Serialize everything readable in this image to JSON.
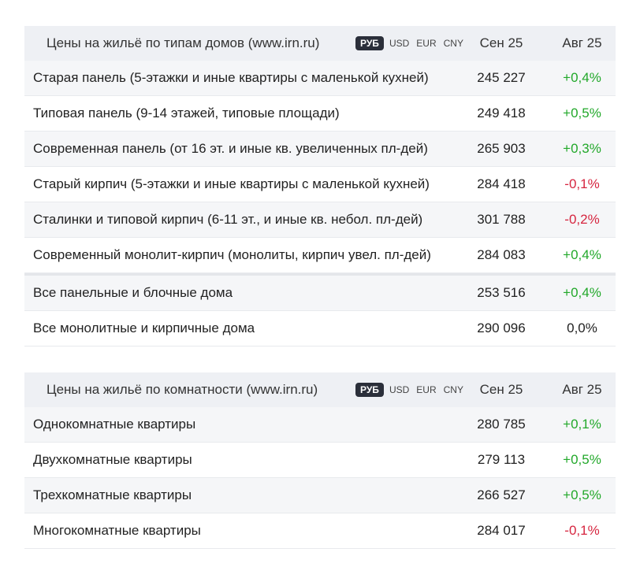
{
  "colors": {
    "positive": "#22a82a",
    "negative": "#d6253f",
    "neutral": "#222222",
    "header_bg": "#eef0f4",
    "active_currency_bg": "#2b2f3a"
  },
  "by_house_type": {
    "title": "Цены на жильё по типам домов (www.irn.ru)",
    "currencies": [
      "РУБ",
      "USD",
      "EUR",
      "CNY"
    ],
    "active_currency": "РУБ",
    "col_current": "Сен 25",
    "col_previous": "Авг 25",
    "rows": [
      {
        "label": "Старая панель (5-этажки и иные квартиры с маленькой кухней)",
        "value": "245 227",
        "change": "+0,4%",
        "trend": "pos"
      },
      {
        "label": "Типовая панель (9-14 этажей, типовые площади)",
        "value": "249 418",
        "change": "+0,5%",
        "trend": "pos"
      },
      {
        "label": "Современная панель (от 16 эт. и иные кв. увеличенных пл-дей)",
        "value": "265 903",
        "change": "+0,3%",
        "trend": "pos"
      },
      {
        "label": "Старый кирпич (5-этажки и иные квартиры с маленькой кухней)",
        "value": "284 418",
        "change": "-0,1%",
        "trend": "neg"
      },
      {
        "label": "Сталинки и типовой кирпич (6-11 эт., и иные кв. небол. пл-дей)",
        "value": "301 788",
        "change": "-0,2%",
        "trend": "neg"
      },
      {
        "label": "Современный монолит-кирпич (монолиты, кирпич увел. пл-дей)",
        "value": "284 083",
        "change": "+0,4%",
        "trend": "pos"
      },
      {
        "label": "Все панельные и блочные дома",
        "value": "253 516",
        "change": "+0,4%",
        "trend": "pos"
      },
      {
        "label": "Все монолитные и кирпичные дома",
        "value": "290 096",
        "change": "0,0%",
        "trend": "zero"
      }
    ]
  },
  "by_rooms": {
    "title": "Цены на жильё по комнатности (www.irn.ru)",
    "currencies": [
      "РУБ",
      "USD",
      "EUR",
      "CNY"
    ],
    "active_currency": "РУБ",
    "col_current": "Сен 25",
    "col_previous": "Авг 25",
    "rows": [
      {
        "label": "Однокомнатные квартиры",
        "value": "280 785",
        "change": "+0,1%",
        "trend": "pos"
      },
      {
        "label": "Двухкомнатные квартиры",
        "value": "279 113",
        "change": "+0,5%",
        "trend": "pos"
      },
      {
        "label": "Трехкомнатные квартиры",
        "value": "266 527",
        "change": "+0,5%",
        "trend": "pos"
      },
      {
        "label": "Многокомнатные квартиры",
        "value": "284 017",
        "change": "-0,1%",
        "trend": "neg"
      }
    ]
  }
}
